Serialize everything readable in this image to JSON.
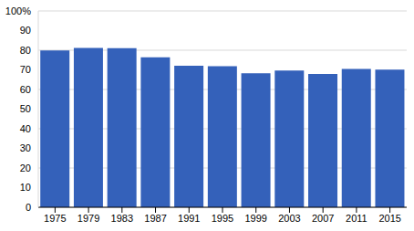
{
  "chart_data": {
    "type": "bar",
    "categories": [
      "1975",
      "1979",
      "1983",
      "1987",
      "1991",
      "1995",
      "1999",
      "2003",
      "2007",
      "2011",
      "2015"
    ],
    "values": [
      79.9,
      81.2,
      81.0,
      76.4,
      72.1,
      71.9,
      68.3,
      69.7,
      67.9,
      70.5,
      70.1
    ],
    "color": "#3461ba",
    "ylim": [
      0,
      100
    ],
    "yticks": [
      0,
      10,
      20,
      30,
      40,
      50,
      60,
      70,
      80,
      90,
      {
        "value": 100,
        "label": "100%"
      }
    ],
    "grid": true
  }
}
